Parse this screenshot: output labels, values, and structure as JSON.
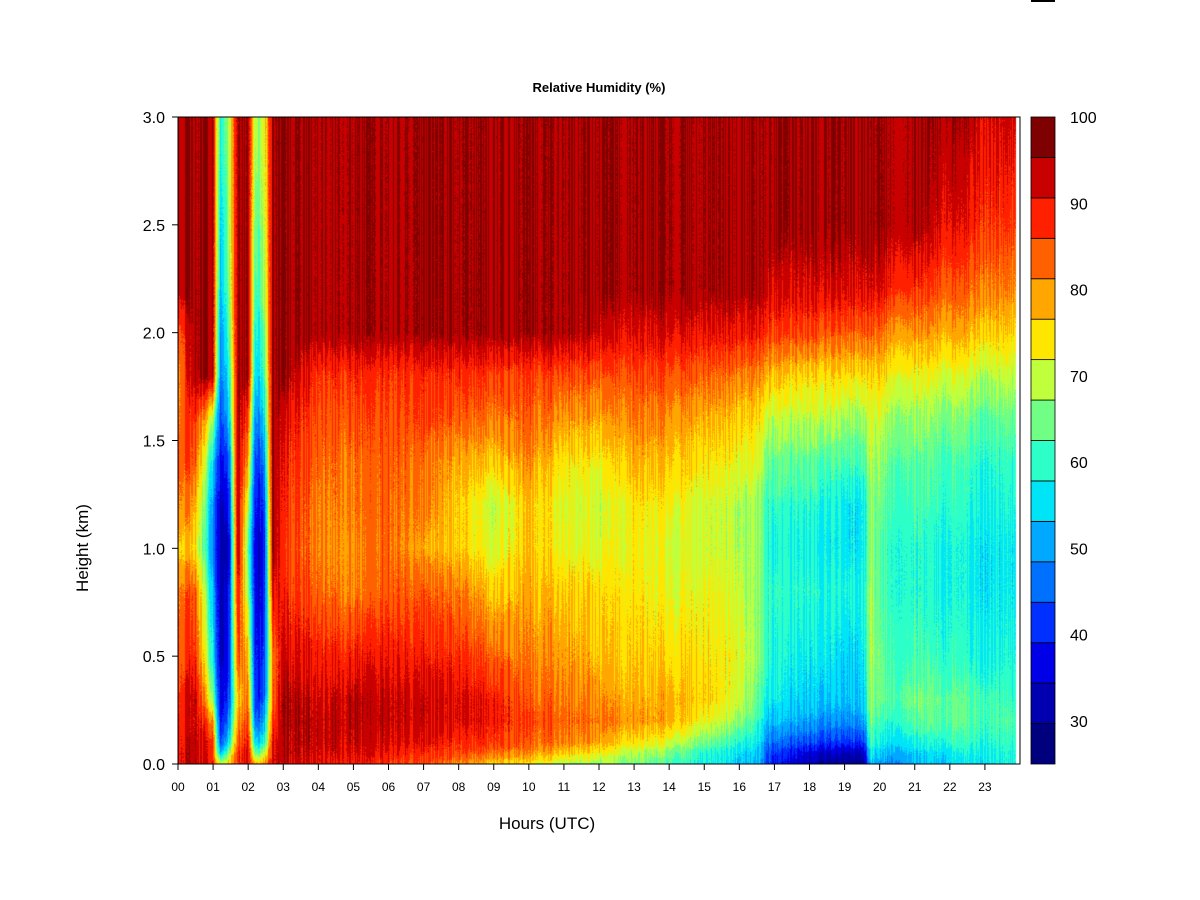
{
  "chart_data": {
    "type": "heatmap",
    "title": "Relative Humidity (%)",
    "xlabel": "Hours (UTC)",
    "ylabel": "Height (km)",
    "xlim": [
      0,
      24
    ],
    "ylim": [
      0.0,
      3.0
    ],
    "x_ticks": [
      "00",
      "01",
      "02",
      "03",
      "04",
      "05",
      "06",
      "07",
      "08",
      "09",
      "10",
      "11",
      "12",
      "13",
      "14",
      "15",
      "16",
      "17",
      "18",
      "19",
      "20",
      "21",
      "22",
      "23"
    ],
    "y_ticks": [
      "0.0",
      "0.5",
      "1.0",
      "1.5",
      "2.0",
      "2.5",
      "3.0"
    ],
    "colorbar": {
      "min": 25,
      "max": 100,
      "step": 5,
      "tick_labels": [
        "30",
        "40",
        "50",
        "60",
        "70",
        "80",
        "90",
        "100"
      ],
      "colors": [
        "#00007f",
        "#0000b0",
        "#0000e8",
        "#0030ff",
        "#0070ff",
        "#00a8ff",
        "#00e4f8",
        "#2cffc8",
        "#70ff84",
        "#c0ff3c",
        "#ffe600",
        "#ffa600",
        "#ff6000",
        "#ff2000",
        "#c80000",
        "#7f0000"
      ]
    },
    "x_hours": [
      0,
      0.5,
      1,
      1.2,
      1.45,
      1.7,
      2,
      2.2,
      2.45,
      2.7,
      3,
      4,
      5,
      6,
      7,
      8,
      9,
      10,
      11,
      12,
      13,
      14,
      15,
      16,
      16.6,
      16.75,
      17,
      18,
      18.5,
      19,
      19.55,
      19.75,
      20,
      21,
      22,
      23,
      23.9
    ],
    "heights_km": [
      0,
      0.05,
      0.1,
      0.2,
      0.3,
      0.5,
      0.8,
      1.0,
      1.2,
      1.4,
      1.6,
      1.8,
      2.0,
      2.2,
      2.5,
      3.0
    ],
    "rh_percent": [
      [
        97,
        97,
        96,
        94,
        93,
        90,
        88,
        82,
        88,
        90,
        88,
        86,
        90,
        100,
        100,
        100
      ],
      [
        98,
        98,
        98,
        97,
        98,
        92,
        88,
        78,
        82,
        88,
        92,
        100,
        100,
        100,
        100,
        100
      ],
      [
        94,
        92,
        92,
        85,
        70,
        60,
        55,
        50,
        52,
        58,
        72,
        100,
        100,
        100,
        100,
        100
      ],
      [
        75,
        55,
        45,
        40,
        38,
        35,
        35,
        33,
        35,
        40,
        45,
        50,
        52,
        55,
        58,
        62
      ],
      [
        80,
        70,
        58,
        50,
        44,
        40,
        38,
        35,
        40,
        45,
        55,
        60,
        65,
        68,
        70,
        72
      ],
      [
        92,
        92,
        88,
        84,
        80,
        90,
        95,
        100,
        100,
        100,
        100,
        100,
        100,
        100,
        100,
        100
      ],
      [
        96,
        96,
        94,
        90,
        86,
        80,
        70,
        65,
        72,
        82,
        90,
        100,
        100,
        100,
        100,
        100
      ],
      [
        80,
        65,
        55,
        45,
        40,
        38,
        36,
        35,
        38,
        42,
        48,
        55,
        58,
        62,
        65,
        70
      ],
      [
        84,
        72,
        60,
        52,
        46,
        42,
        40,
        38,
        42,
        48,
        56,
        62,
        66,
        70,
        72,
        74
      ],
      [
        95,
        95,
        94,
        90,
        86,
        85,
        95,
        100,
        100,
        100,
        100,
        100,
        100,
        100,
        100,
        100
      ],
      [
        97,
        98,
        98,
        99,
        99,
        96,
        92,
        90,
        92,
        93,
        95,
        100,
        100,
        100,
        100,
        100
      ],
      [
        96,
        97,
        98,
        98,
        97,
        94,
        88,
        86,
        86,
        88,
        90,
        92,
        100,
        100,
        100,
        100
      ],
      [
        94,
        96,
        97,
        98,
        98,
        93,
        85,
        84,
        86,
        86,
        89,
        92,
        100,
        100,
        100,
        100
      ],
      [
        92,
        95,
        97,
        98,
        98,
        95,
        89,
        88,
        88,
        89,
        90,
        92,
        100,
        100,
        100,
        100
      ],
      [
        89,
        92,
        95,
        97,
        97,
        93,
        88,
        82,
        85,
        86,
        90,
        92,
        100,
        100,
        100,
        100
      ],
      [
        85,
        90,
        92,
        96,
        96,
        92,
        86,
        80,
        80,
        82,
        88,
        92,
        100,
        100,
        100,
        100
      ],
      [
        80,
        87,
        92,
        94,
        94,
        88,
        80,
        74,
        72,
        80,
        86,
        91,
        100,
        100,
        100,
        100
      ],
      [
        77,
        84,
        88,
        90,
        88,
        85,
        82,
        80,
        80,
        84,
        88,
        90,
        100,
        100,
        100,
        100
      ],
      [
        72,
        80,
        86,
        88,
        86,
        84,
        80,
        76,
        75,
        78,
        84,
        90,
        100,
        100,
        100,
        100
      ],
      [
        70,
        76,
        82,
        86,
        84,
        80,
        78,
        74,
        72,
        76,
        82,
        88,
        97,
        100,
        100,
        100
      ],
      [
        68,
        72,
        78,
        84,
        82,
        80,
        78,
        77,
        78,
        82,
        86,
        90,
        96,
        100,
        100,
        100
      ],
      [
        64,
        68,
        74,
        82,
        82,
        78,
        75,
        74,
        76,
        80,
        84,
        89,
        96,
        100,
        100,
        100
      ],
      [
        60,
        62,
        68,
        76,
        80,
        78,
        76,
        74,
        74,
        78,
        82,
        88,
        95,
        100,
        100,
        100
      ],
      [
        56,
        58,
        62,
        70,
        74,
        76,
        74,
        72,
        72,
        76,
        80,
        86,
        95,
        100,
        100,
        100
      ],
      [
        53,
        55,
        58,
        62,
        66,
        68,
        68,
        70,
        70,
        74,
        78,
        85,
        94,
        100,
        100,
        100
      ],
      [
        44,
        46,
        50,
        56,
        60,
        64,
        64,
        63,
        64,
        68,
        74,
        82,
        92,
        98,
        100,
        100
      ],
      [
        40,
        42,
        47,
        54,
        58,
        60,
        62,
        60,
        62,
        66,
        72,
        80,
        90,
        96,
        100,
        100
      ],
      [
        32,
        36,
        44,
        52,
        56,
        58,
        62,
        60,
        62,
        66,
        72,
        78,
        90,
        96,
        100,
        100
      ],
      [
        30,
        34,
        42,
        50,
        55,
        58,
        60,
        58,
        60,
        64,
        72,
        78,
        88,
        96,
        100,
        100
      ],
      [
        29,
        33,
        42,
        50,
        54,
        56,
        60,
        58,
        58,
        64,
        70,
        78,
        88,
        96,
        100,
        100
      ],
      [
        30,
        34,
        42,
        52,
        56,
        58,
        60,
        58,
        58,
        64,
        70,
        78,
        88,
        96,
        100,
        100
      ],
      [
        55,
        60,
        64,
        68,
        70,
        72,
        72,
        70,
        70,
        72,
        74,
        78,
        88,
        96,
        100,
        100
      ],
      [
        50,
        54,
        58,
        62,
        66,
        66,
        64,
        64,
        66,
        68,
        72,
        78,
        86,
        95,
        100,
        100
      ],
      [
        54,
        56,
        60,
        66,
        68,
        64,
        62,
        62,
        64,
        66,
        70,
        76,
        84,
        92,
        100,
        100
      ],
      [
        56,
        58,
        62,
        66,
        66,
        62,
        60,
        60,
        62,
        64,
        68,
        74,
        82,
        88,
        95,
        100
      ],
      [
        58,
        60,
        62,
        64,
        64,
        60,
        58,
        58,
        60,
        62,
        66,
        72,
        80,
        86,
        92,
        97
      ],
      [
        60,
        60,
        62,
        64,
        62,
        60,
        58,
        58,
        60,
        62,
        66,
        72,
        78,
        84,
        90,
        96
      ]
    ]
  }
}
